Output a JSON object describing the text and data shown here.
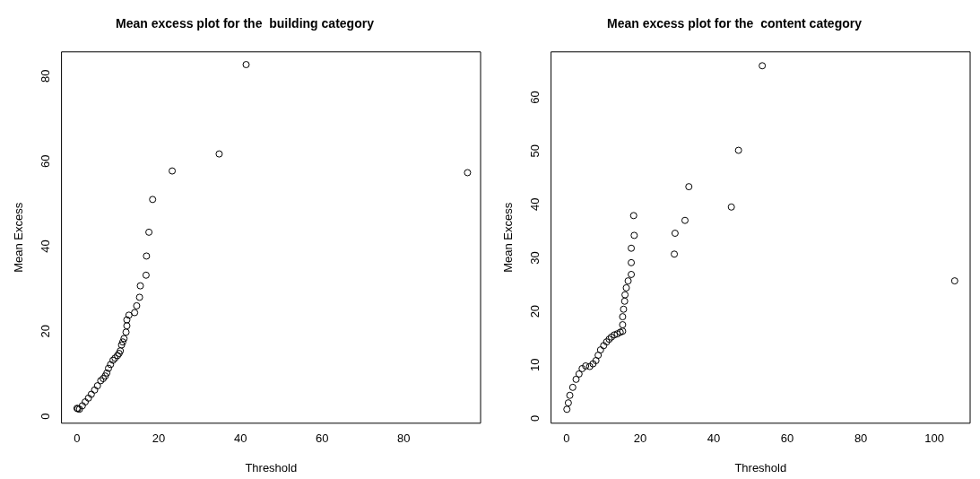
{
  "chart_data": [
    {
      "type": "scatter",
      "title": "Mean excess plot for the  building category",
      "xlabel": "Threshold",
      "ylabel": "Mean Excess",
      "marker": "circle",
      "grid": false,
      "legend": false,
      "xlim": [
        -3.8,
        98.8
      ],
      "ylim": [
        -1.6,
        85.7
      ],
      "xticks": [
        0,
        20,
        40,
        60,
        80
      ],
      "yticks": [
        0,
        20,
        40,
        60,
        80
      ],
      "series": [
        {
          "color": "#000000",
          "x": [
            0,
            0.2,
            0.6,
            1.3,
            2,
            2.8,
            3.5,
            4.3,
            5,
            5.8,
            6.4,
            6.9,
            7.3,
            7.7,
            8.2,
            8.8,
            9.3,
            9.9,
            10.3,
            10.6,
            10.9,
            11.2,
            11.5,
            12,
            12.2,
            12.2,
            12.7,
            14.1,
            14.6,
            15.3,
            15.5,
            16.9,
            17,
            17.6,
            18.5,
            23.3,
            34.8,
            41.4,
            95.6
          ],
          "values": [
            1.9,
            1.8,
            1.7,
            2.5,
            3.4,
            4.3,
            5.2,
            6.2,
            7.2,
            8.4,
            8.9,
            9.5,
            10.2,
            11.3,
            12.2,
            13.2,
            13.7,
            14.3,
            14.8,
            15.4,
            16.8,
            17.5,
            18.3,
            19.8,
            21.3,
            22.7,
            23.8,
            24.4,
            26,
            28,
            30.7,
            33.2,
            37.7,
            43.3,
            51,
            57.7,
            61.7,
            82.7,
            57.3
          ]
        }
      ]
    },
    {
      "type": "scatter",
      "title": "Mean excess plot for the  content category",
      "xlabel": "Threshold",
      "ylabel": "Mean Excess",
      "marker": "circle",
      "grid": false,
      "legend": false,
      "xlim": [
        -4.2,
        109.7
      ],
      "ylim": [
        -0.9,
        68.5
      ],
      "xticks": [
        0,
        20,
        40,
        60,
        80,
        100
      ],
      "yticks": [
        0,
        10,
        20,
        30,
        40,
        50,
        60
      ],
      "series": [
        {
          "color": "#000000",
          "x": [
            0.1,
            0.5,
            0.9,
            1.7,
            2.6,
            3.4,
            4.25,
            5.2,
            6.3,
            7.2,
            8,
            8.6,
            9.25,
            10.1,
            10.9,
            11.6,
            12.2,
            13,
            13.8,
            14.6,
            15.25,
            15.25,
            15.25,
            15.5,
            15.8,
            15.9,
            16.25,
            16.75,
            17.6,
            17.6,
            17.6,
            18.4,
            18.25,
            29.3,
            29.5,
            32.2,
            33.25,
            44.8,
            46.75,
            53.2,
            105.5
          ],
          "values": [
            1.7,
            2.9,
            4.3,
            5.8,
            7.3,
            8.3,
            9.3,
            9.8,
            9.7,
            10.2,
            10.8,
            11.8,
            12.8,
            13.6,
            14.3,
            14.8,
            15.2,
            15.6,
            15.8,
            16.1,
            16.3,
            17.5,
            19,
            20.4,
            21.9,
            23.1,
            24.4,
            25.7,
            26.9,
            29.1,
            31.8,
            34.2,
            37.9,
            30.7,
            34.6,
            37,
            43.3,
            39.5,
            50.1,
            65.9,
            25.7
          ]
        }
      ]
    }
  ]
}
